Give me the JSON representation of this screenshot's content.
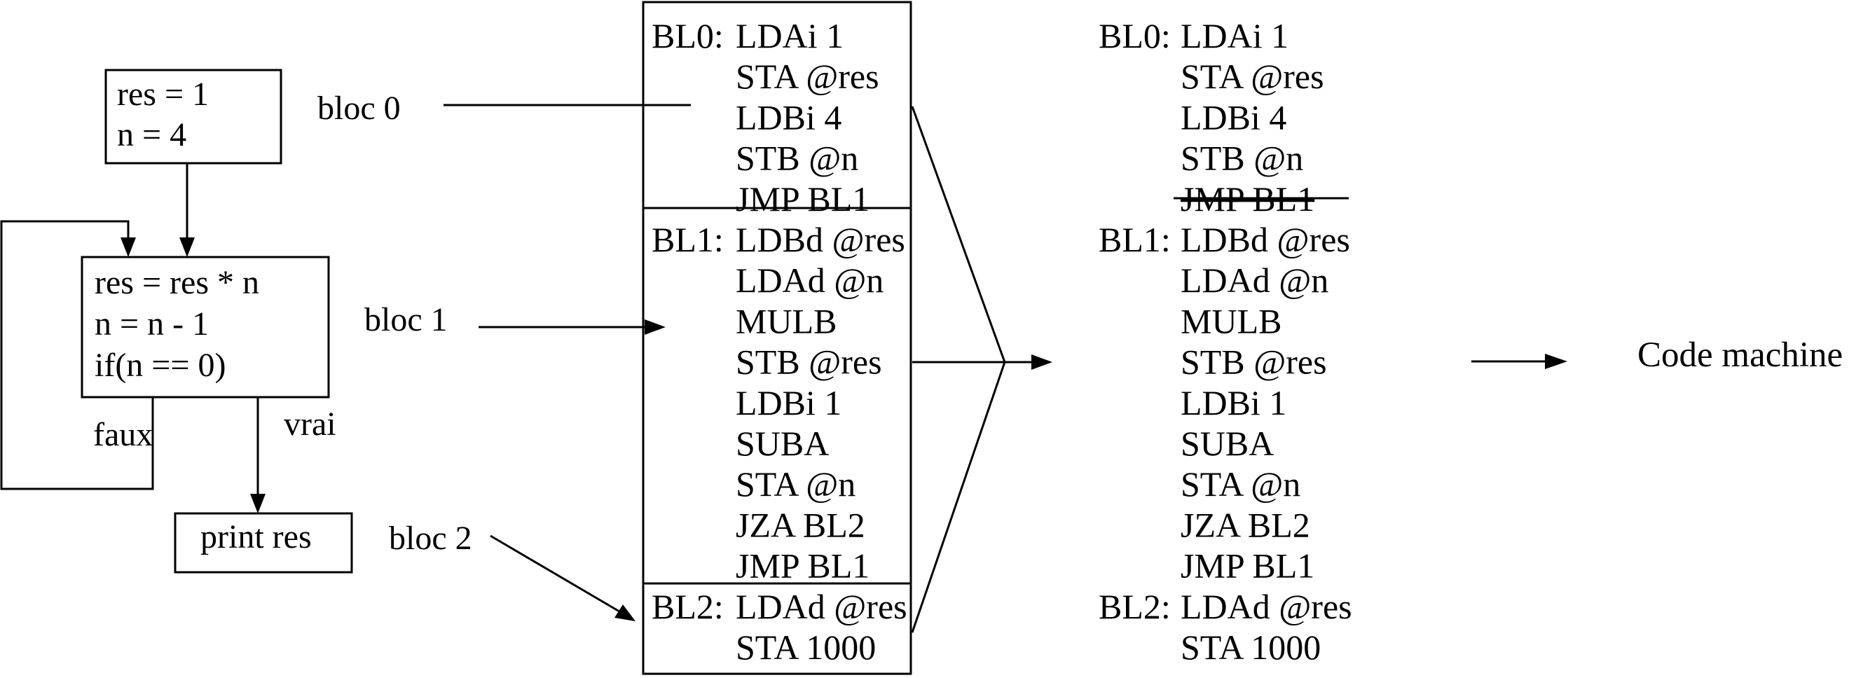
{
  "flowchart": {
    "box_init": {
      "lines": [
        "res = 1",
        "n = 4"
      ]
    },
    "box_loop": {
      "lines": [
        "res = res * n",
        "n = n - 1",
        "if(n == 0)"
      ]
    },
    "box_print": {
      "text": "print res"
    },
    "false_label": "faux",
    "true_label": "vrai"
  },
  "bloc_labels": {
    "bloc0": "bloc 0",
    "bloc1": "bloc 1",
    "bloc2": "bloc 2"
  },
  "assembly_box": {
    "sections": [
      {
        "label": "BL0:",
        "instructions": [
          "LDAi 1",
          "STA @res",
          "LDBi 4",
          "STB @n",
          "JMP BL1"
        ]
      },
      {
        "label": "BL1:",
        "instructions": [
          "LDBd @res",
          "LDAd @n",
          "MULB",
          "STB @res",
          "LDBi 1",
          "SUBA",
          "STA @n",
          "JZA BL2",
          "JMP BL1"
        ]
      },
      {
        "label": "BL2:",
        "instructions": [
          "LDAd @res",
          "STA 1000"
        ]
      }
    ]
  },
  "merged_code": {
    "lines": [
      {
        "label": "BL0:",
        "text": "LDAi 1",
        "struck": false
      },
      {
        "label": "",
        "text": "STA @res",
        "struck": false
      },
      {
        "label": "",
        "text": "LDBi 4",
        "struck": false
      },
      {
        "label": "",
        "text": "STB @n",
        "struck": false
      },
      {
        "label": "",
        "text": "JMP BL1",
        "struck": true
      },
      {
        "label": "BL1:",
        "text": "LDBd @res",
        "struck": false
      },
      {
        "label": "",
        "text": "LDAd @n",
        "struck": false
      },
      {
        "label": "",
        "text": "MULB",
        "struck": false
      },
      {
        "label": "",
        "text": "STB @res",
        "struck": false
      },
      {
        "label": "",
        "text": "LDBi 1",
        "struck": false
      },
      {
        "label": "",
        "text": "SUBA",
        "struck": false
      },
      {
        "label": "",
        "text": "STA @n",
        "struck": false
      },
      {
        "label": "",
        "text": "JZA BL2",
        "struck": false
      },
      {
        "label": "",
        "text": "JMP BL1",
        "struck": false
      },
      {
        "label": "BL2:",
        "text": "LDAd @res",
        "struck": false
      },
      {
        "label": "",
        "text": "STA 1000",
        "struck": false
      }
    ]
  },
  "output_label": "Code machine",
  "colors": {
    "ink": "#000000",
    "background": "#ffffff"
  }
}
